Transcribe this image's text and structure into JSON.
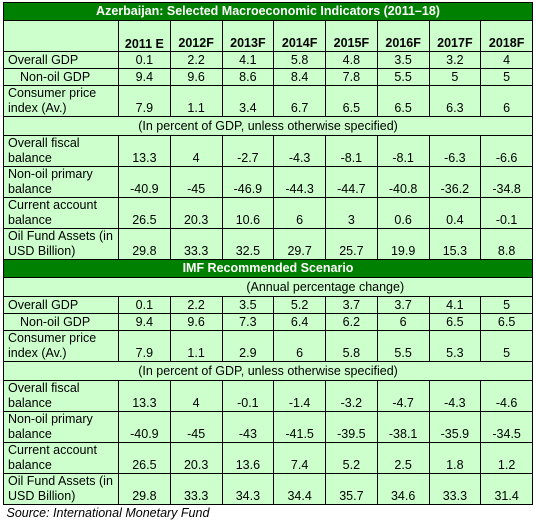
{
  "title1": "Azerbaijan: Selected Macroeconomic Indicators (2011–18)",
  "headers": [
    "2011 E",
    "2012F",
    "2013F",
    "2014F",
    "2015F",
    "2016F",
    "2017F",
    "2018F"
  ],
  "section1": {
    "rows_a": [
      {
        "label": "Overall GDP",
        "values": [
          "0.1",
          "2.2",
          "4.1",
          "5.8",
          "4.8",
          "3.5",
          "3.2",
          "4"
        ]
      },
      {
        "label": "Non-oil GDP",
        "values": [
          "9.4",
          "9.6",
          "8.6",
          "8.4",
          "7.8",
          "5.5",
          "5",
          "5"
        ]
      },
      {
        "label": "Consumer price index (Av.)",
        "values": [
          "7.9",
          "1.1",
          "3.4",
          "6.7",
          "6.5",
          "6.5",
          "6.3",
          "6"
        ]
      }
    ],
    "note": "(In percent of GDP, unless otherwise specified)",
    "rows_b": [
      {
        "label": "Overall fiscal balance",
        "values": [
          "13.3",
          "4",
          "-2.7",
          "-4.3",
          "-8.1",
          "-8.1",
          "-6.3",
          "-6.6"
        ]
      },
      {
        "label": "Non-oil primary balance",
        "values": [
          "-40.9",
          "-45",
          "-46.9",
          "-44.3",
          "-44.7",
          "-40.8",
          "-36.2",
          "-34.8"
        ]
      },
      {
        "label": "Current account balance",
        "values": [
          "26.5",
          "20.3",
          "10.6",
          "6",
          "3",
          "0.6",
          "0.4",
          "-0.1"
        ]
      },
      {
        "label": "Oil Fund Assets (in USD Billion)",
        "values": [
          "29.8",
          "33.3",
          "32.5",
          "29.7",
          "25.7",
          "19.9",
          "15.3",
          "8.8"
        ]
      }
    ]
  },
  "title2": "IMF Recommended Scenario",
  "section2": {
    "note_top": "(Annual percentage change)",
    "rows_a": [
      {
        "label": "Overall GDP",
        "values": [
          "0.1",
          "2.2",
          "3.5",
          "5.2",
          "3.7",
          "3.7",
          "4.1",
          "5"
        ]
      },
      {
        "label": "Non-oil GDP",
        "values": [
          "9.4",
          "9.6",
          "7.3",
          "6.4",
          "6.2",
          "6",
          "6.5",
          "6.5"
        ]
      },
      {
        "label": "Consumer price index (Av.)",
        "values": [
          "7.9",
          "1.1",
          "2.9",
          "6",
          "5.8",
          "5.5",
          "5.3",
          "5"
        ]
      }
    ],
    "note": "(In percent of GDP, unless otherwise specified)",
    "rows_b": [
      {
        "label": "Overall fiscal balance",
        "values": [
          "13.3",
          "4",
          "-0.1",
          "-1.4",
          "-3.2",
          "-4.7",
          "-4.3",
          "-4.6"
        ]
      },
      {
        "label": "Non-oil primary balance",
        "values": [
          "-40.9",
          "-45",
          "-43",
          "-41.5",
          "-39.5",
          "-38.1",
          "-35.9",
          "-34.5"
        ]
      },
      {
        "label": "Current account balance",
        "values": [
          "26.5",
          "20.3",
          "13.6",
          "7.4",
          "5.2",
          "2.5",
          "1.8",
          "1.2"
        ]
      },
      {
        "label": "Oil Fund Assets (in USD Billion)",
        "values": [
          "29.8",
          "33.3",
          "34.3",
          "34.4",
          "35.7",
          "34.6",
          "33.3",
          "31.4"
        ]
      }
    ]
  },
  "source": "Source: International Monetary Fund"
}
